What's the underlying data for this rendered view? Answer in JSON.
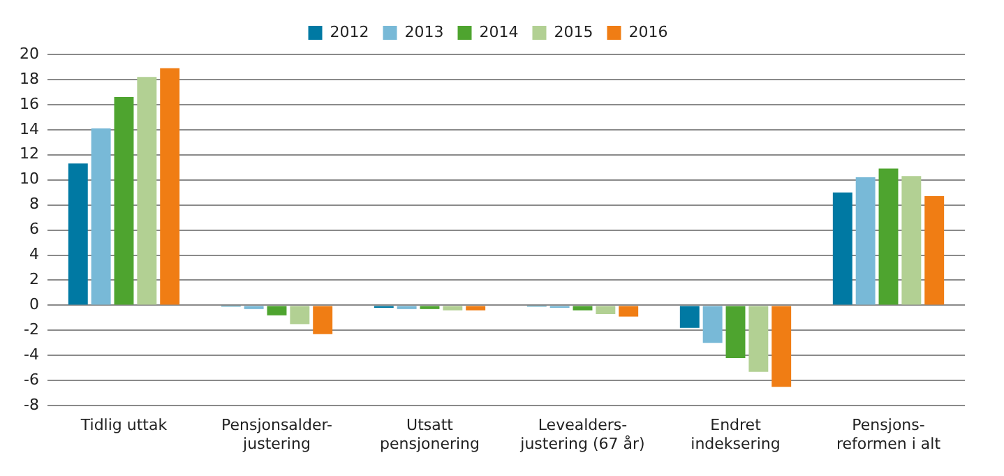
{
  "chart_data": {
    "type": "bar",
    "categories": [
      "Tidlig uttak",
      "Pensjonsalder-\njustering",
      "Utsatt\npensjonering",
      "Levealders-\njustering (67 år)",
      "Endret\nindeksering",
      "Pensjons-\nreformen i alt"
    ],
    "series": [
      {
        "name": "2012",
        "color": "#0079a3",
        "values": [
          11.3,
          -0.1,
          -0.2,
          -0.1,
          -1.8,
          9.0
        ]
      },
      {
        "name": "2013",
        "color": "#78b9d7",
        "values": [
          14.1,
          -0.3,
          -0.3,
          -0.2,
          -3.0,
          10.2
        ]
      },
      {
        "name": "2014",
        "color": "#4ea42f",
        "values": [
          16.6,
          -0.8,
          -0.3,
          -0.4,
          -4.2,
          10.9
        ]
      },
      {
        "name": "2015",
        "color": "#b2d093",
        "values": [
          18.2,
          -1.5,
          -0.4,
          -0.7,
          -5.3,
          10.3
        ]
      },
      {
        "name": "2016",
        "color": "#f07d14",
        "values": [
          18.9,
          -2.3,
          -0.4,
          -0.9,
          -6.5,
          8.7
        ]
      }
    ],
    "ylim": [
      -8,
      20
    ],
    "yticks": [
      -8,
      -6,
      -4,
      -2,
      0,
      2,
      4,
      6,
      8,
      10,
      12,
      14,
      16,
      18,
      20
    ],
    "grid": "y",
    "legend": "top"
  }
}
